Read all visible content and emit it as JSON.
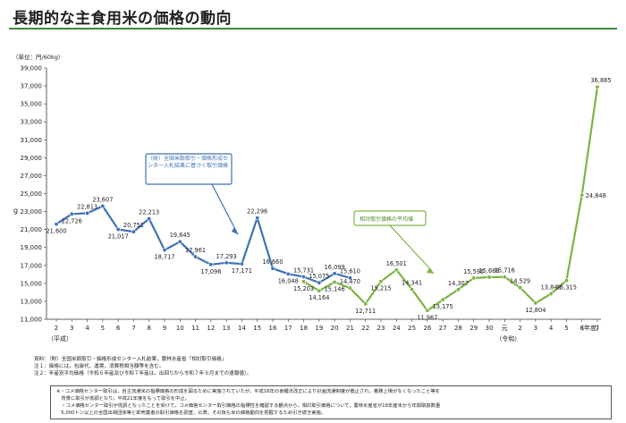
{
  "page": {
    "title": "長期的な主食用米の価格の動向"
  },
  "chart_data": {
    "type": "line",
    "title": "長期的な主食用米の価格の動向",
    "unit_label": "（単位：円/60kg）",
    "ylabel": "g",
    "xlabel": "（年度）",
    "ylim": [
      11000,
      39000
    ],
    "y_ticks": [
      11000,
      13000,
      15000,
      17000,
      19000,
      21000,
      23000,
      25000,
      27000,
      29000,
      31000,
      33000,
      35000,
      37000,
      39000
    ],
    "y_tick_labels": [
      "11,000",
      "13,000",
      "15,000",
      "17,000",
      "19,000",
      "21,000",
      "23,000",
      "25,000",
      "27,000",
      "29,000",
      "31,000",
      "33,000",
      "35,000",
      "37,000",
      "39,000"
    ],
    "x_tick_labels": [
      "2",
      "3",
      "4",
      "5",
      "6",
      "7",
      "8",
      "9",
      "10",
      "11",
      "12",
      "13",
      "14",
      "15",
      "16",
      "17",
      "18",
      "19",
      "20",
      "21",
      "22",
      "23",
      "24",
      "25",
      "26",
      "27",
      "28",
      "29",
      "30",
      "元",
      "2",
      "3",
      "4",
      "5",
      "6",
      "7"
    ],
    "era_labels": [
      {
        "text": "（平成）",
        "at_index": 0
      },
      {
        "text": "（令和）",
        "at_index": 29
      }
    ],
    "grid": false,
    "series": [
      {
        "name": "（財）全国米穀取引・価格形成センター入札結果に基づく取引価格",
        "color": "#3f72b3",
        "start_index": 0,
        "values": [
          21600,
          22726,
          22813,
          23607,
          21017,
          20751,
          22213,
          18717,
          19645,
          17961,
          17096,
          17293,
          17171,
          22296,
          16660,
          16048,
          15731,
          15075,
          16099,
          15610
        ],
        "labels": [
          "21,600",
          "22,726",
          "22,813",
          "23,607",
          "21,017",
          "20,751",
          "22,213",
          "18,717",
          "19,645",
          "17,961",
          "17,096",
          "17,293",
          "17,171",
          "22,296",
          "16,660",
          "16,048",
          "15,731",
          "15,075",
          "16,099",
          "15,610"
        ]
      },
      {
        "name": "相対取引価格の平均値",
        "color": "#7fb344",
        "start_index": 16,
        "values": [
          15203,
          14164,
          15146,
          14470,
          12711,
          15215,
          16501,
          14341,
          11967,
          13175,
          14307,
          15595,
          15688,
          15716,
          14529,
          12804,
          13844,
          15315,
          24848,
          36885
        ],
        "labels": [
          "15,203",
          "14,164",
          "15,146",
          "14,470",
          "12,711",
          "15,215",
          "16,501",
          "14,341",
          "11,967",
          "13,175",
          "14,307",
          "15,595",
          "15,688",
          "15,716",
          "14,529",
          "12,804",
          "13,844",
          "15,315",
          "24,848",
          "36,885"
        ]
      }
    ],
    "annotations": [
      {
        "text": "（財）全国米穀取引・価格形成センター入札結果に基づく取引価格",
        "color": "#3f72b3"
      },
      {
        "text": "相対取引価格の平均値",
        "color": "#7fb344"
      }
    ]
  },
  "notes": {
    "source": "資料：（財）全国米穀取引・価格形成センター入札結果，農林水産省「相対取引価格」",
    "note1": "注１：価格には，包装代，運賃，消費税相当額等を含む。",
    "note2": "注２：年産別平均価格（令和６年産及び令和７年産は，出回りから令和７年９月までの速報値）。"
  },
  "remarks": {
    "line1": "※・コメ価格センター取引は，自主流通米の指標価格の形成を図るために実施されていたが，平成16年の食糧法改正により計画流通制度が廃止され，義務上場がなくなったこと等を",
    "line2": "　背景に取引が低調となり，平成21年度をもって取引を中止。",
    "line3": "　・コメ価格センター取引が低調となったことを受けて，コメ価格センター取引価格の指標性を確認する観点から，相対取引価格について，農林水産省が18年産米から年間取扱数量",
    "line4": "　5,000トン以上の全国出荷団体等と卸売業者の取引価格を調査，公表。その後も米の価格動向を把握するため引き続き実施。"
  }
}
